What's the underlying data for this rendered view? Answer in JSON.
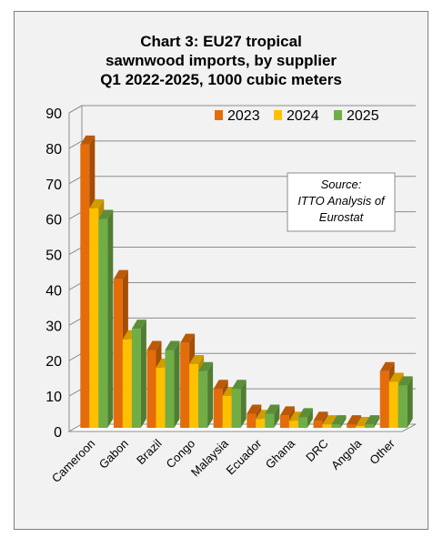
{
  "chart_data": {
    "type": "bar",
    "title_lines": [
      "Chart 3: EU27 tropical",
      "sawnwood imports, by supplier",
      "Q1 2022-2025, 1000 cubic meters"
    ],
    "categories": [
      "Cameroon",
      "Gabon",
      "Brazil",
      "Congo",
      "Malaysia",
      "Ecuador",
      "Ghana",
      "DRC",
      "Angola",
      "Other"
    ],
    "series": [
      {
        "name": "2023",
        "color": "#e46c0a",
        "values": [
          80,
          42,
          22,
          24,
          11,
          4,
          3.5,
          2,
          1,
          16
        ]
      },
      {
        "name": "2024",
        "color": "#ffc000",
        "values": [
          62,
          25,
          17,
          18,
          9,
          2.5,
          2,
          1,
          0.5,
          13
        ]
      },
      {
        "name": "2025",
        "color": "#70ad47",
        "values": [
          59,
          28,
          22,
          16,
          11,
          4,
          3,
          1,
          1,
          12
        ]
      }
    ],
    "ylim": [
      0,
      90
    ],
    "yticks": [
      0,
      10,
      20,
      30,
      40,
      50,
      60,
      70,
      80,
      90
    ],
    "grid": true,
    "legend_position": "top-right",
    "annotation": [
      "Source:",
      "ITTO Analysis of",
      "Eurostat"
    ]
  }
}
